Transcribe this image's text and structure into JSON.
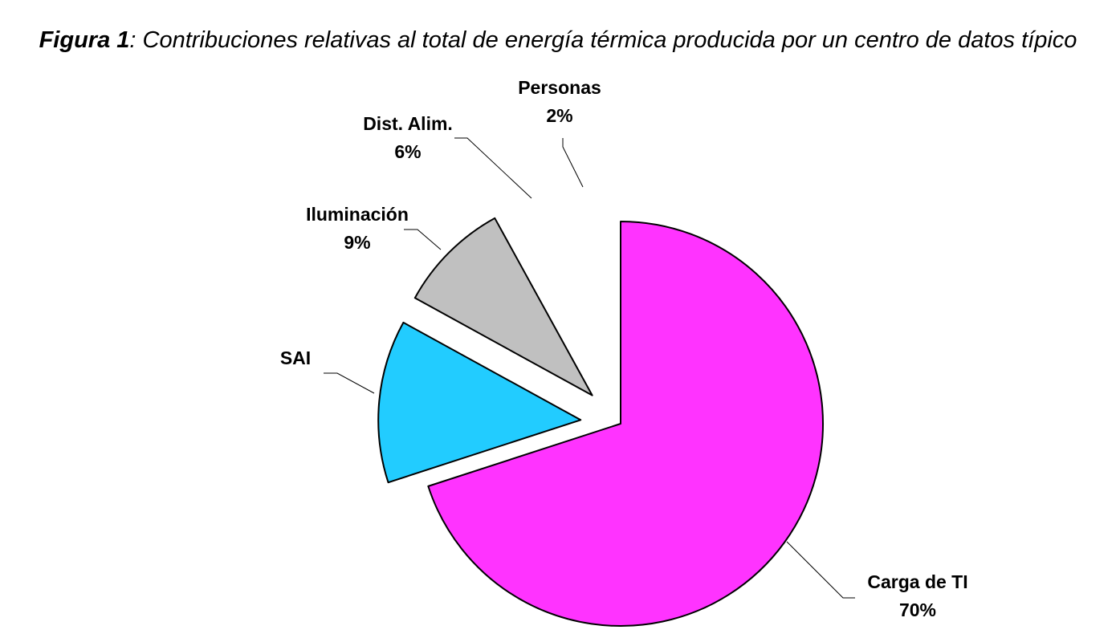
{
  "figure": {
    "title_prefix": "Figura 1",
    "title_text": ": Contribuciones relativas al total de energía térmica producida por un centro de datos típico"
  },
  "chart_data": {
    "type": "pie",
    "title": "Figura 1: Contribuciones relativas al total de energía térmica producida por un centro de datos típico",
    "slices": [
      {
        "label": "Carga de TI",
        "value": 70,
        "value_label": "70%",
        "color": "#ff33ff",
        "exploded": false
      },
      {
        "label": "SAI",
        "value": 13,
        "value_label": "",
        "color": "#22ccff",
        "exploded": true
      },
      {
        "label": "Iluminación",
        "value": 9,
        "value_label": "9%",
        "color": "#c0c0c0",
        "exploded": true
      },
      {
        "label": "Dist. Alim.",
        "value": 6,
        "value_label": "6%",
        "color": "#ffffff",
        "exploded": true
      },
      {
        "label": "Personas",
        "value": 2,
        "value_label": "2%",
        "color": "#ffffff",
        "exploded": true
      }
    ],
    "legend": "none",
    "start_angle": "12 o'clock, clockwise"
  }
}
